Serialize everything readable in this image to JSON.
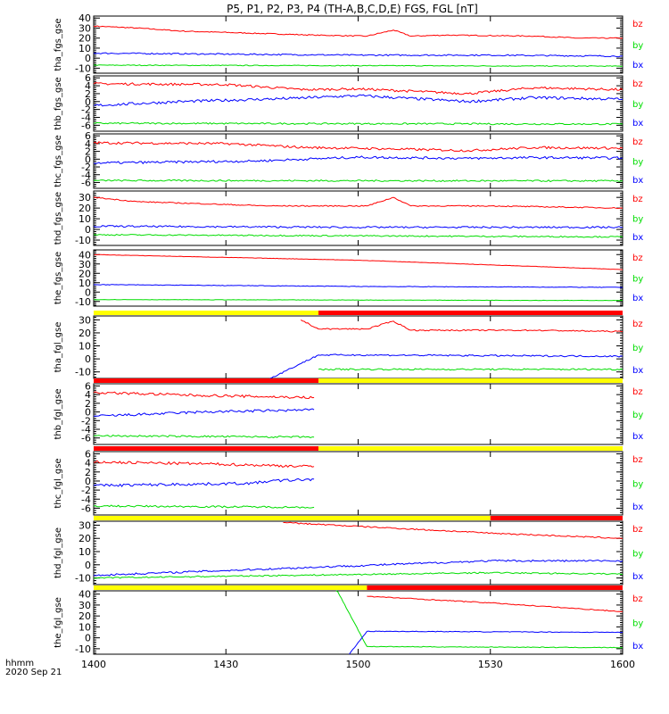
{
  "chart_data": {
    "type": "line",
    "title": "P5, P1, P2, P3, P4 (TH-A,B,C,D,E) FGS, FGL [nT]",
    "xlabel": "hhmm",
    "date": "2020 Sep 21",
    "x_ticks": [
      "1400",
      "1430",
      "1500",
      "1530",
      "1600"
    ],
    "xlim_minutes": [
      0,
      120
    ],
    "legend": [
      "bz",
      "by",
      "bx"
    ],
    "colors": {
      "bz": "#ff0000",
      "by": "#00dd00",
      "bx": "#0000ff",
      "bar_yellow": "#ffff00",
      "bar_red": "#ff0000"
    },
    "panels": [
      {
        "ylabel": "tha_fgs_gse",
        "ylim": [
          -15,
          42
        ],
        "yticks": [
          "40",
          "30",
          "20",
          "10",
          "0",
          "-10"
        ],
        "ytick_values": [
          40,
          30,
          20,
          10,
          0,
          -10
        ],
        "series": [
          {
            "name": "bz",
            "x": [
              0,
              10,
              20,
              35,
              50,
              62,
              68,
              72,
              80,
              100,
              110,
              120
            ],
            "values": [
              32,
              30,
              27,
              25,
              23,
              22,
              28,
              22,
              23,
              22,
              20,
              20
            ],
            "noise": 0.5
          },
          {
            "name": "by",
            "x": [
              0,
              120
            ],
            "values": [
              -7,
              -8
            ],
            "noise": 0.4
          },
          {
            "name": "bx",
            "x": [
              0,
              30,
              60,
              90,
              120
            ],
            "values": [
              5,
              4,
              3,
              3,
              2
            ],
            "noise": 0.7
          }
        ]
      },
      {
        "ylabel": "thb_fgs_gse",
        "ylim": [
          -7.5,
          6.5
        ],
        "yticks": [
          "6",
          "4",
          "2",
          "0",
          "-2",
          "-4",
          "-6"
        ],
        "ytick_values": [
          6,
          4,
          2,
          0,
          -2,
          -4,
          -6
        ],
        "series": [
          {
            "name": "bz",
            "x": [
              0,
              30,
              48,
              60,
              85,
              100,
              120
            ],
            "values": [
              4.5,
              4.3,
              3.0,
              3.2,
              2.0,
              3.5,
              3.0
            ],
            "noise": 0.3
          },
          {
            "name": "by",
            "x": [
              0,
              120
            ],
            "values": [
              -5.5,
              -5.7
            ],
            "noise": 0.2
          },
          {
            "name": "bx",
            "x": [
              0,
              20,
              45,
              60,
              85,
              100,
              120
            ],
            "values": [
              -1.0,
              0,
              0.8,
              1.5,
              0,
              1.0,
              0.6
            ],
            "noise": 0.35
          }
        ]
      },
      {
        "ylabel": "thc_fgs_gse",
        "ylim": [
          -7.5,
          6.5
        ],
        "yticks": [
          "6",
          "4",
          "2",
          "0",
          "-2",
          "-4",
          "-6"
        ],
        "ytick_values": [
          6,
          4,
          2,
          0,
          -2,
          -4,
          -6
        ],
        "series": [
          {
            "name": "bz",
            "x": [
              0,
              30,
              48,
              60,
              85,
              100,
              120
            ],
            "values": [
              4.2,
              4.0,
              3.0,
              2.8,
              2.2,
              3.0,
              2.8
            ],
            "noise": 0.3
          },
          {
            "name": "by",
            "x": [
              0,
              120
            ],
            "values": [
              -5.5,
              -5.6
            ],
            "noise": 0.2
          },
          {
            "name": "bx",
            "x": [
              0,
              36,
              48,
              60,
              85,
              100,
              120
            ],
            "values": [
              -1.0,
              -0.5,
              0,
              0.5,
              0.2,
              0.4,
              0.3
            ],
            "noise": 0.3
          }
        ]
      },
      {
        "ylabel": "thd_fgs_gse",
        "ylim": [
          -15,
          36
        ],
        "yticks": [
          "30",
          "20",
          "10",
          "0",
          "-10"
        ],
        "ytick_values": [
          30,
          20,
          10,
          0,
          -10
        ],
        "series": [
          {
            "name": "bz",
            "x": [
              0,
              10,
              40,
              62,
              68,
              72,
              90,
              120
            ],
            "values": [
              30,
              26,
              22,
              22,
              30,
              22,
              22,
              20
            ],
            "noise": 0.5
          },
          {
            "name": "by",
            "x": [
              0,
              60,
              120
            ],
            "values": [
              -5,
              -6,
              -7
            ],
            "noise": 0.6
          },
          {
            "name": "bx",
            "x": [
              0,
              60,
              120
            ],
            "values": [
              3,
              2,
              2
            ],
            "noise": 0.8
          }
        ]
      },
      {
        "ylabel": "the_fgs_gse",
        "ylim": [
          -15,
          45
        ],
        "yticks": [
          "40",
          "30",
          "20",
          "10",
          "0",
          "-10"
        ],
        "ytick_values": [
          40,
          30,
          20,
          10,
          0,
          -10
        ],
        "series": [
          {
            "name": "bz",
            "x": [
              0,
              60,
              120
            ],
            "values": [
              40,
              34,
              24
            ],
            "noise": 0.2
          },
          {
            "name": "by",
            "x": [
              0,
              120
            ],
            "values": [
              -8,
              -9
            ],
            "noise": 0.2
          },
          {
            "name": "bx",
            "x": [
              0,
              60,
              120
            ],
            "values": [
              8,
              6,
              5
            ],
            "noise": 0.3
          }
        ]
      },
      {
        "ylabel": "tha_fgl_gse",
        "ylim": [
          -15,
          33
        ],
        "yticks": [
          "30",
          "20",
          "10",
          "0",
          "-10"
        ],
        "ytick_values": [
          30,
          20,
          10,
          0,
          -10
        ],
        "bar": [
          {
            "color": "yellow",
            "from": 0,
            "to": 51
          },
          {
            "color": "red",
            "from": 51,
            "to": 120
          }
        ],
        "series": [
          {
            "name": "bz",
            "x": [
              47,
              51,
              62,
              68,
              72,
              100,
              120
            ],
            "values": [
              30,
              23,
              23,
              29,
              22,
              22,
              21
            ],
            "noise": 0.5
          },
          {
            "name": "by",
            "x": [
              51,
              120
            ],
            "values": [
              -8,
              -8
            ],
            "noise": 0.6
          },
          {
            "name": "bx",
            "x": [
              40,
              51,
              60,
              120
            ],
            "values": [
              -15,
              3,
              3,
              2
            ],
            "noise": 0.6
          }
        ]
      },
      {
        "ylabel": "thb_fgl_gse",
        "ylim": [
          -7.5,
          6.5
        ],
        "yticks": [
          "6",
          "4",
          "2",
          "0",
          "-2",
          "-4",
          "-6"
        ],
        "ytick_values": [
          6,
          4,
          2,
          0,
          -2,
          -4,
          -6
        ],
        "bar": [
          {
            "color": "red",
            "from": 0,
            "to": 51
          },
          {
            "color": "yellow",
            "from": 51,
            "to": 120
          }
        ],
        "series": [
          {
            "name": "bz",
            "x": [
              0,
              25,
              50
            ],
            "values": [
              4.5,
              3.8,
              3.3
            ],
            "noise": 0.3
          },
          {
            "name": "by",
            "x": [
              0,
              50
            ],
            "values": [
              -5.5,
              -5.8
            ],
            "noise": 0.2
          },
          {
            "name": "bx",
            "x": [
              0,
              25,
              50
            ],
            "values": [
              -1.0,
              0,
              0.5
            ],
            "noise": 0.3
          }
        ]
      },
      {
        "ylabel": "thc_fgl_gse",
        "ylim": [
          -7.5,
          6.5
        ],
        "yticks": [
          "6",
          "4",
          "2",
          "0",
          "-2",
          "-4",
          "-6"
        ],
        "ytick_values": [
          6,
          4,
          2,
          0,
          -2,
          -4,
          -6
        ],
        "bar": [
          {
            "color": "red",
            "from": 0,
            "to": 51
          },
          {
            "color": "yellow",
            "from": 51,
            "to": 120
          }
        ],
        "series": [
          {
            "name": "bz",
            "x": [
              0,
              25,
              50
            ],
            "values": [
              4.2,
              3.8,
              3.2
            ],
            "noise": 0.3
          },
          {
            "name": "by",
            "x": [
              0,
              50
            ],
            "values": [
              -5.5,
              -5.8
            ],
            "noise": 0.2
          },
          {
            "name": "bx",
            "x": [
              0,
              36,
              40,
              50
            ],
            "values": [
              -1.0,
              -0.5,
              0,
              0.4
            ],
            "noise": 0.3
          }
        ]
      },
      {
        "ylabel": "thd_fgl_gse",
        "ylim": [
          -15,
          33
        ],
        "yticks": [
          "30",
          "20",
          "10",
          "0",
          "-10"
        ],
        "ytick_values": [
          30,
          20,
          10,
          0,
          -10
        ],
        "bar": [
          {
            "color": "yellow",
            "from": 0,
            "to": 90
          },
          {
            "color": "red",
            "from": 90,
            "to": 120
          }
        ],
        "series": [
          {
            "name": "bz",
            "x": [
              43,
              90,
              120
            ],
            "values": [
              32,
              24,
              20
            ],
            "noise": 0.5
          },
          {
            "name": "by",
            "x": [
              0,
              90,
              120
            ],
            "values": [
              -10,
              -6,
              -7
            ],
            "noise": 0.5
          },
          {
            "name": "bx",
            "x": [
              0,
              90,
              120
            ],
            "values": [
              -8,
              3,
              3
            ],
            "noise": 0.7
          }
        ]
      },
      {
        "ylabel": "the_fgl_gse",
        "ylim": [
          -15,
          43
        ],
        "yticks": [
          "40",
          "30",
          "20",
          "10",
          "0",
          "-10"
        ],
        "ytick_values": [
          40,
          30,
          20,
          10,
          0,
          -10
        ],
        "bar": [
          {
            "color": "yellow",
            "from": 0,
            "to": 62
          },
          {
            "color": "red",
            "from": 62,
            "to": 120
          }
        ],
        "series": [
          {
            "name": "bz",
            "x": [
              62,
              90,
              120
            ],
            "values": [
              38,
              32,
              24
            ],
            "noise": 0.4
          },
          {
            "name": "by",
            "x": [
              55,
              62,
              120
            ],
            "values": [
              45,
              -8,
              -9
            ],
            "noise": 0.3
          },
          {
            "name": "bx",
            "x": [
              58,
              62,
              120
            ],
            "values": [
              -15,
              6,
              5
            ],
            "noise": 0.3
          }
        ]
      }
    ]
  }
}
